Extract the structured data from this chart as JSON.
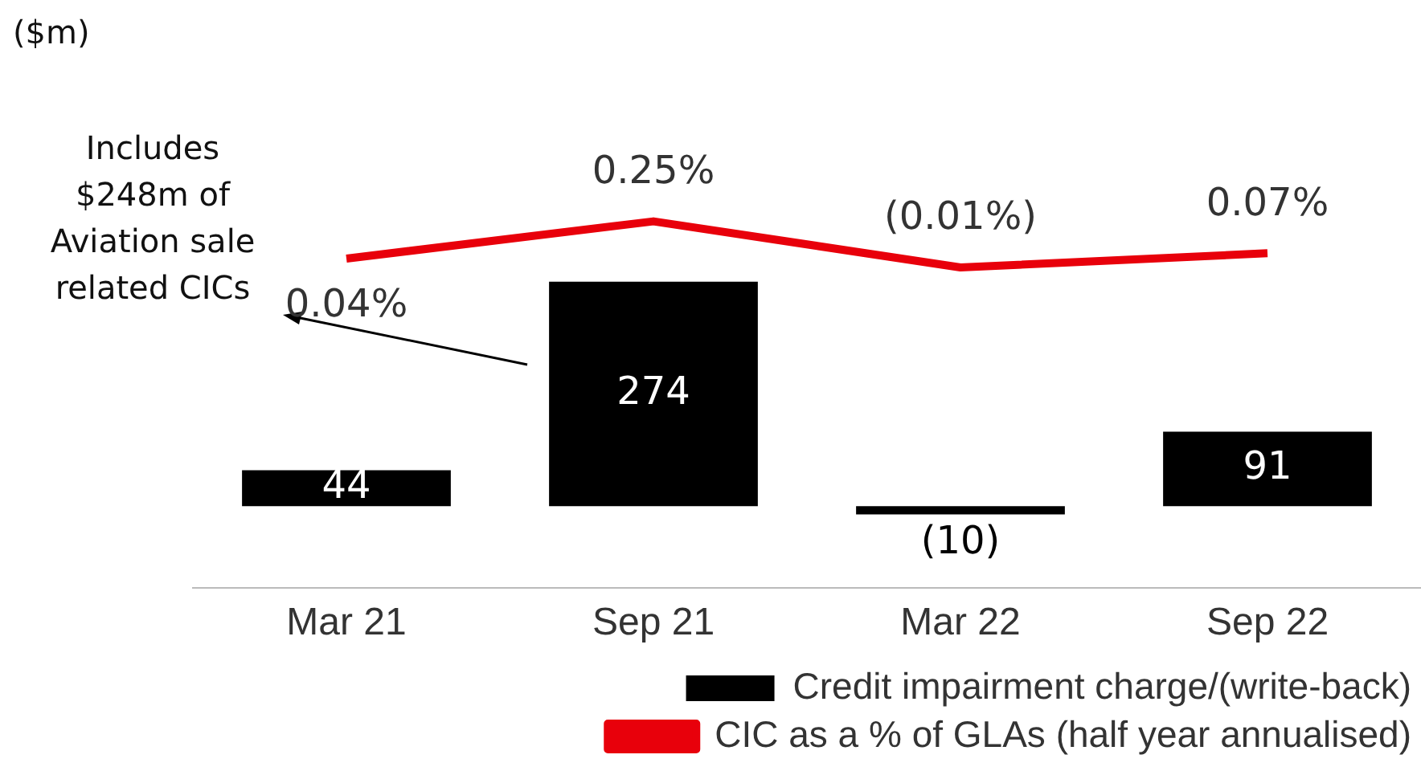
{
  "chart_data": [
    {
      "type": "bar",
      "categories": [
        "Mar 21",
        "Sep 21",
        "Mar 22",
        "Sep 22"
      ],
      "series": [
        {
          "name": "Credit impairment charge/(write-back)",
          "color": "#000000",
          "values": [
            44,
            274,
            -10,
            91
          ],
          "value_labels": [
            "44",
            "274",
            "(10)",
            "91"
          ]
        }
      ],
      "tick_labels": "x",
      "grid": false,
      "legend": "bottom",
      "annotations": [
        "($m)",
        "Includes $248m of Aviation sale related CICs"
      ]
    },
    {
      "type": "line",
      "categories": [
        null,
        null,
        null,
        null
      ],
      "series": [
        {
          "name": "CIC as a % of GLAs (half year annualised)",
          "color": "#e8000b",
          "values": [
            0.04,
            0.25,
            -0.01,
            0.07
          ],
          "value_labels": [
            "0.04%",
            "0.25%",
            "(0.01%)",
            "0.07%"
          ]
        }
      ],
      "tick_labels": false,
      "grid": false,
      "legend": "bottom",
      "marker": "none"
    }
  ]
}
